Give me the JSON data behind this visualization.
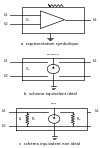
{
  "bg_color": "#ffffff",
  "line_color": "#000000",
  "text_color": "#000000",
  "captions": [
    "a  représentation symbolique",
    "b  schéma équivalent idéal",
    "c  schéma équivalent non idéal"
  ],
  "caption_fontsize": 2.8,
  "label_fontsize": 3.2,
  "lw": 0.45
}
